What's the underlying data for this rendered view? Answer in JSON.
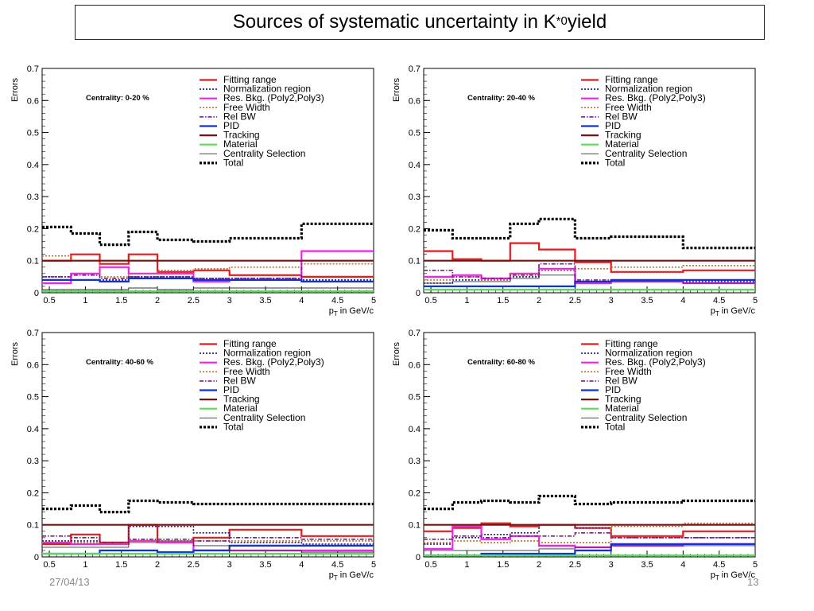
{
  "slide": {
    "title_main": "Sources of systematic uncertainty in K",
    "title_sup": "*0",
    "title_end": " yield",
    "footer_date": "27/04/13",
    "footer_page": "13"
  },
  "legend": [
    {
      "name": "Fitting range",
      "color": "#e41a1c",
      "style": "solid",
      "width": 2.2
    },
    {
      "name": "Normalization region",
      "color": "#1a1a8c",
      "style": "dot",
      "width": 1.6
    },
    {
      "name": "Res. Bkg. (Poly2,Poly3)",
      "color": "#ee22ee",
      "style": "solid",
      "width": 2.2
    },
    {
      "name": "Free Width",
      "color": "#d2691e",
      "style": "dot",
      "width": 1.6
    },
    {
      "name": "Rel BW",
      "color": "#7a1a8c",
      "style": "dashdot",
      "width": 1.6
    },
    {
      "name": "PID",
      "color": "#1030dd",
      "style": "solid",
      "width": 2.2
    },
    {
      "name": "Tracking",
      "color": "#7a1010",
      "style": "solid",
      "width": 2.2
    },
    {
      "name": "Material",
      "color": "#55dd55",
      "style": "solid",
      "width": 2.2
    },
    {
      "name": "Centrality Selection",
      "color": "#333333",
      "style": "solid",
      "width": 0.9
    },
    {
      "name": "Total",
      "color": "#000000",
      "style": "dot",
      "width": 3.2
    }
  ],
  "chart_data": [
    {
      "type": "line",
      "annotation": "Centrality: 0-20 %",
      "ylabel": "Errors",
      "xlabel": "p_T in GeV/c",
      "xlim": [
        0.4,
        5.0
      ],
      "ylim": [
        0,
        0.7
      ],
      "xticks": [
        "0.5",
        "1",
        "1.5",
        "2",
        "2.5",
        "3",
        "3.5",
        "4",
        "4.5",
        "5"
      ],
      "yticks": [
        "0",
        "0.1",
        "0.2",
        "0.3",
        "0.4",
        "0.5",
        "0.6",
        "0.7"
      ],
      "bin_edges": [
        0.4,
        0.8,
        1.2,
        1.6,
        2.0,
        2.5,
        3.0,
        4.0,
        5.0
      ],
      "series": [
        {
          "name": "Fitting range",
          "values": [
            0.1,
            0.12,
            0.09,
            0.12,
            0.065,
            0.07,
            0.055,
            0.05
          ]
        },
        {
          "name": "Normalization region",
          "values": [
            0.05,
            0.04,
            0.04,
            0.05,
            0.05,
            0.045,
            0.045,
            0.04
          ]
        },
        {
          "name": "Res. Bkg. (Poly2,Poly3)",
          "values": [
            0.03,
            0.06,
            0.08,
            0.06,
            0.06,
            0.035,
            0.04,
            0.13
          ]
        },
        {
          "name": "Free Width",
          "values": [
            0.115,
            0.1,
            0.05,
            0.06,
            0.07,
            0.075,
            0.08,
            0.09
          ]
        },
        {
          "name": "Rel BW",
          "values": [
            0.05,
            0.055,
            0.045,
            0.05,
            0.05,
            0.045,
            0.045,
            0.1
          ]
        },
        {
          "name": "PID",
          "values": [
            0.04,
            0.04,
            0.035,
            0.045,
            0.045,
            0.04,
            0.04,
            0.035
          ]
        },
        {
          "name": "Tracking",
          "values": [
            0.1,
            0.1,
            0.1,
            0.1,
            0.1,
            0.1,
            0.1,
            0.1
          ]
        },
        {
          "name": "Material",
          "values": [
            0.005,
            0.005,
            0.005,
            0.005,
            0.005,
            0.005,
            0.005,
            0.005
          ]
        },
        {
          "name": "Centrality Selection",
          "values": [
            0.01,
            0.01,
            0.01,
            0.015,
            0.01,
            0.015,
            0.015,
            0.015
          ]
        },
        {
          "name": "Total",
          "values": [
            0.205,
            0.185,
            0.15,
            0.19,
            0.165,
            0.16,
            0.17,
            0.215
          ]
        }
      ]
    },
    {
      "type": "line",
      "annotation": "Centrality: 20-40 %",
      "ylabel": "Errors",
      "xlabel": "p_T in GeV/c",
      "xlim": [
        0.4,
        5.0
      ],
      "ylim": [
        0,
        0.7
      ],
      "xticks": [
        "0.5",
        "1",
        "1.5",
        "2",
        "2.5",
        "3",
        "3.5",
        "4",
        "4.5",
        "5"
      ],
      "yticks": [
        "0",
        "0.1",
        "0.2",
        "0.3",
        "0.4",
        "0.5",
        "0.6",
        "0.7"
      ],
      "bin_edges": [
        0.4,
        0.8,
        1.2,
        1.6,
        2.0,
        2.5,
        3.0,
        4.0,
        5.0
      ],
      "series": [
        {
          "name": "Fitting range",
          "values": [
            0.13,
            0.105,
            0.1,
            0.155,
            0.135,
            0.095,
            0.065,
            0.07
          ]
        },
        {
          "name": "Normalization region",
          "values": [
            0.03,
            0.04,
            0.04,
            0.05,
            0.07,
            0.035,
            0.035,
            0.035
          ]
        },
        {
          "name": "Res. Bkg. (Poly2,Poly3)",
          "values": [
            0.05,
            0.055,
            0.045,
            0.06,
            0.075,
            0.03,
            0.035,
            0.03
          ]
        },
        {
          "name": "Free Width",
          "values": [
            0.04,
            0.05,
            0.04,
            0.06,
            0.07,
            0.075,
            0.08,
            0.085
          ]
        },
        {
          "name": "Rel BW",
          "values": [
            0.07,
            0.05,
            0.045,
            0.055,
            0.09,
            0.04,
            0.04,
            0.04
          ]
        },
        {
          "name": "PID",
          "values": [
            0.02,
            0.02,
            0.02,
            0.02,
            0.02,
            0.035,
            0.04,
            0.04
          ]
        },
        {
          "name": "Tracking",
          "values": [
            0.1,
            0.1,
            0.1,
            0.1,
            0.1,
            0.1,
            0.1,
            0.1
          ]
        },
        {
          "name": "Material",
          "values": [
            0.01,
            0.01,
            0.01,
            0.01,
            0.01,
            0.01,
            0.01,
            0.01
          ]
        },
        {
          "name": "Centrality Selection",
          "values": [
            0.03,
            0.035,
            0.035,
            0.045,
            0.055,
            0.035,
            0.035,
            0.03
          ]
        },
        {
          "name": "Total",
          "values": [
            0.195,
            0.17,
            0.17,
            0.215,
            0.23,
            0.17,
            0.175,
            0.14
          ]
        }
      ]
    },
    {
      "type": "line",
      "annotation": "Centrality: 40-60 %",
      "ylabel": "Errors",
      "xlabel": "p_T in GeV/c",
      "xlim": [
        0.4,
        5.0
      ],
      "ylim": [
        0,
        0.7
      ],
      "xticks": [
        "0.5",
        "1",
        "1.5",
        "2",
        "2.5",
        "3",
        "3.5",
        "4",
        "4.5",
        "5"
      ],
      "yticks": [
        "0",
        "0.1",
        "0.2",
        "0.3",
        "0.4",
        "0.5",
        "0.6",
        "0.7"
      ],
      "bin_edges": [
        0.4,
        0.8,
        1.2,
        1.6,
        2.0,
        2.5,
        3.0,
        4.0,
        5.0
      ],
      "series": [
        {
          "name": "Fitting range",
          "values": [
            0.04,
            0.07,
            0.045,
            0.1,
            0.045,
            0.06,
            0.085,
            0.065
          ]
        },
        {
          "name": "Normalization region",
          "values": [
            0.05,
            0.05,
            0.04,
            0.095,
            0.095,
            0.075,
            0.045,
            0.04
          ]
        },
        {
          "name": "Res. Bkg. (Poly2,Poly3)",
          "values": [
            0.045,
            0.04,
            0.04,
            0.05,
            0.045,
            0.02,
            0.02,
            0.02
          ]
        },
        {
          "name": "Free Width",
          "values": [
            0.045,
            0.045,
            0.04,
            0.05,
            0.05,
            0.05,
            0.05,
            0.05
          ]
        },
        {
          "name": "Rel BW",
          "values": [
            0.065,
            0.06,
            0.045,
            0.055,
            0.055,
            0.05,
            0.06,
            0.055
          ]
        },
        {
          "name": "PID",
          "values": [
            0.01,
            0.01,
            0.02,
            0.02,
            0.015,
            0.02,
            0.035,
            0.035
          ]
        },
        {
          "name": "Tracking",
          "values": [
            0.1,
            0.1,
            0.1,
            0.1,
            0.1,
            0.1,
            0.1,
            0.1
          ]
        },
        {
          "name": "Material",
          "values": [
            0.01,
            0.01,
            0.01,
            0.01,
            0.01,
            0.01,
            0.01,
            0.01
          ]
        },
        {
          "name": "Centrality Selection",
          "values": [
            0.03,
            0.03,
            0.03,
            0.045,
            0.05,
            0.035,
            0.02,
            0.015
          ]
        },
        {
          "name": "Total",
          "values": [
            0.15,
            0.16,
            0.14,
            0.175,
            0.17,
            0.165,
            0.165,
            0.165
          ]
        }
      ]
    },
    {
      "type": "line",
      "annotation": "Centrality: 60-80 %",
      "ylabel": "Errors",
      "xlabel": "p_T in GeV/c",
      "xlim": [
        0.4,
        5.0
      ],
      "ylim": [
        0,
        0.7
      ],
      "xticks": [
        "0.5",
        "1",
        "1.5",
        "2",
        "2.5",
        "3",
        "3.5",
        "4",
        "4.5",
        "5"
      ],
      "yticks": [
        "0",
        "0.1",
        "0.2",
        "0.3",
        "0.4",
        "0.5",
        "0.6",
        "0.7"
      ],
      "bin_edges": [
        0.4,
        0.8,
        1.2,
        1.6,
        2.0,
        2.5,
        3.0,
        4.0,
        5.0
      ],
      "series": [
        {
          "name": "Fitting range",
          "values": [
            0.08,
            0.09,
            0.105,
            0.095,
            0.1,
            0.09,
            0.065,
            0.08
          ]
        },
        {
          "name": "Normalization region",
          "values": [
            0.04,
            0.06,
            0.07,
            0.075,
            0.1,
            0.09,
            0.06,
            0.06
          ]
        },
        {
          "name": "Res. Bkg. (Poly2,Poly3)",
          "values": [
            0.025,
            0.095,
            0.055,
            0.065,
            0.035,
            0.03,
            0.035,
            0.04
          ]
        },
        {
          "name": "Free Width",
          "values": [
            0.045,
            0.05,
            0.045,
            0.05,
            0.045,
            0.045,
            0.095,
            0.105
          ]
        },
        {
          "name": "Rel BW",
          "values": [
            0.055,
            0.065,
            0.06,
            0.065,
            0.065,
            0.075,
            0.06,
            0.06
          ]
        },
        {
          "name": "PID",
          "values": [
            0.005,
            0.005,
            0.01,
            0.01,
            0.01,
            0.02,
            0.04,
            0.04
          ]
        },
        {
          "name": "Tracking",
          "values": [
            0.1,
            0.1,
            0.1,
            0.1,
            0.1,
            0.1,
            0.1,
            0.1
          ]
        },
        {
          "name": "Material",
          "values": [
            0.005,
            0.005,
            0.005,
            0.005,
            0.005,
            0.005,
            0.005,
            0.005
          ]
        },
        {
          "name": "Centrality Selection",
          "values": [
            0.02,
            0.02,
            0.02,
            0.02,
            0.025,
            0.03,
            0.035,
            0.035
          ]
        },
        {
          "name": "Total",
          "values": [
            0.15,
            0.17,
            0.175,
            0.17,
            0.19,
            0.165,
            0.17,
            0.175
          ]
        }
      ]
    }
  ]
}
